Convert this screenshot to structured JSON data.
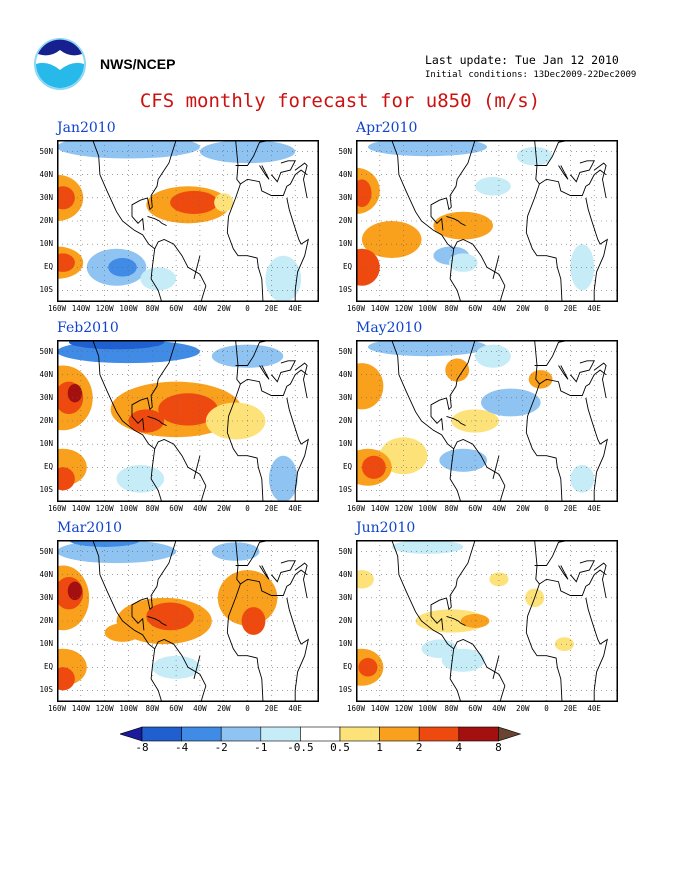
{
  "header": {
    "org": "NWS/NCEP",
    "last_update": "Last update: Tue Jan 12 2010",
    "initial_conditions": "Initial conditions: 13Dec2009-22Dec2009",
    "title": "CFS monthly forecast for u850 (m/s)"
  },
  "panels": [
    {
      "title": "Jan2010"
    },
    {
      "title": "Apr2010"
    },
    {
      "title": "Feb2010"
    },
    {
      "title": "May2010"
    },
    {
      "title": "Mar2010"
    },
    {
      "title": "Jun2010"
    }
  ],
  "lat_labels": [
    "50N",
    "40N",
    "30N",
    "20N",
    "10N",
    "EQ",
    "10S"
  ],
  "lon_labels": [
    "160W",
    "140W",
    "120W",
    "100W",
    "80W",
    "60W",
    "40W",
    "20W",
    "0",
    "20E",
    "40E"
  ],
  "colorbar": {
    "labels": [
      "-8",
      "-4",
      "-2",
      "-1",
      "-0.5",
      "0.5",
      "1",
      "2",
      "4",
      "8"
    ],
    "colors": [
      "#1a1a9a",
      "#1f5fd0",
      "#3f8be6",
      "#8ec3f2",
      "#c6ecf7",
      "#ffffff",
      "#fde27a",
      "#f9a01c",
      "#ee4a0f",
      "#a40f0f",
      "#6b4431"
    ]
  }
}
